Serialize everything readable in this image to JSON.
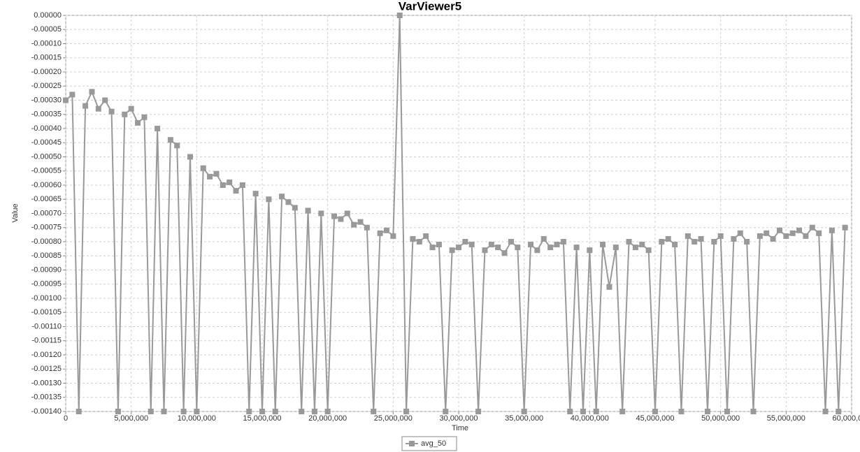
{
  "chart_data": {
    "type": "line",
    "title": "VarViewer5",
    "x_label": "Time",
    "y_label": "Value",
    "grid": true,
    "legend": "bottom",
    "xlim": [
      0,
      60000000
    ],
    "ylim": [
      -0.0014,
      0
    ],
    "xticks": [
      0,
      {
        "value": 5000000,
        "label": "5,000,000"
      },
      {
        "value": 10000000,
        "label": "10,000,000"
      },
      {
        "value": 15000000,
        "label": "15,000,000"
      },
      {
        "value": 20000000,
        "label": "20,000,000"
      },
      {
        "value": 25000000,
        "label": "25,000,000"
      },
      {
        "value": 30000000,
        "label": "30,000,000"
      },
      {
        "value": 35000000,
        "label": "35,000,000"
      },
      {
        "value": 40000000,
        "label": "40,000,000"
      },
      {
        "value": 45000000,
        "label": "45,000,000"
      },
      {
        "value": 50000000,
        "label": "50,000,000"
      },
      {
        "value": 55000000,
        "label": "55,000,000"
      },
      {
        "value": 60000000,
        "label": "60,000,000"
      }
    ],
    "yticks": [
      {
        "value": 0,
        "label": "0.00000"
      },
      {
        "value": -5e-05,
        "label": "-0.00005"
      },
      {
        "value": -0.0001,
        "label": "-0.00010"
      },
      {
        "value": -0.00015,
        "label": "-0.00015"
      },
      {
        "value": -0.0002,
        "label": "-0.00020"
      },
      {
        "value": -0.00025,
        "label": "-0.00025"
      },
      {
        "value": -0.0003,
        "label": "-0.00030"
      },
      {
        "value": -0.00035,
        "label": "-0.00035"
      },
      {
        "value": -0.0004,
        "label": "-0.00040"
      },
      {
        "value": -0.00045,
        "label": "-0.00045"
      },
      {
        "value": -0.0005,
        "label": "-0.00050"
      },
      {
        "value": -0.00055,
        "label": "-0.00055"
      },
      {
        "value": -0.0006,
        "label": "-0.00060"
      },
      {
        "value": -0.00065,
        "label": "-0.00065"
      },
      {
        "value": -0.0007,
        "label": "-0.00070"
      },
      {
        "value": -0.00075,
        "label": "-0.00075"
      },
      {
        "value": -0.0008,
        "label": "-0.00080"
      },
      {
        "value": -0.00085,
        "label": "-0.00085"
      },
      {
        "value": -0.0009,
        "label": "-0.00090"
      },
      {
        "value": -0.00095,
        "label": "-0.00095"
      },
      {
        "value": -0.001,
        "label": "-0.00100"
      },
      {
        "value": -0.00105,
        "label": "-0.00105"
      },
      {
        "value": -0.0011,
        "label": "-0.00110"
      },
      {
        "value": -0.00115,
        "label": "-0.00115"
      },
      {
        "value": -0.0012,
        "label": "-0.00120"
      },
      {
        "value": -0.00125,
        "label": "-0.00125"
      },
      {
        "value": -0.0013,
        "label": "-0.00130"
      },
      {
        "value": -0.00135,
        "label": "-0.00135"
      },
      {
        "value": -0.0014,
        "label": "-0.00140"
      }
    ],
    "x": [
      0,
      500000,
      1000000,
      1500000,
      2000000,
      2500000,
      3000000,
      3500000,
      4000000,
      4500000,
      5000000,
      5500000,
      6000000,
      6500000,
      7000000,
      7500000,
      8000000,
      8500000,
      9000000,
      9500000,
      10000000,
      10500000,
      11000000,
      11500000,
      12000000,
      12500000,
      13000000,
      13500000,
      14000000,
      14500000,
      15000000,
      15500000,
      16000000,
      16500000,
      17000000,
      17500000,
      18000000,
      18500000,
      19000000,
      19500000,
      20000000,
      20500000,
      21000000,
      21500000,
      22000000,
      22500000,
      23000000,
      23500000,
      24000000,
      24500000,
      25000000,
      25500000,
      26000000,
      26500000,
      27000000,
      27500000,
      28000000,
      28500000,
      29000000,
      29500000,
      30000000,
      30500000,
      31000000,
      31500000,
      32000000,
      32500000,
      33000000,
      33500000,
      34000000,
      34500000,
      35000000,
      35500000,
      36000000,
      36500000,
      37000000,
      37500000,
      38000000,
      38500000,
      39000000,
      39500000,
      40000000,
      40500000,
      41000000,
      41500000,
      42000000,
      42500000,
      43000000,
      43500000,
      44000000,
      44500000,
      45000000,
      45500000,
      46000000,
      46500000,
      47000000,
      47500000,
      48000000,
      48500000,
      49000000,
      49500000,
      50000000,
      50500000,
      51000000,
      51500000,
      52000000,
      52500000,
      53000000,
      53500000,
      54000000,
      54500000,
      55000000,
      55500000,
      56000000,
      56500000,
      57000000,
      57500000,
      58000000,
      58500000,
      59000000,
      59500000
    ],
    "series": [
      {
        "name": "avg_50",
        "color": "#999999",
        "values": [
          -0.0003,
          -0.00028,
          -0.0014,
          -0.00032,
          -0.00027,
          -0.00033,
          -0.0003,
          -0.00034,
          -0.0014,
          -0.00035,
          -0.00033,
          -0.00038,
          -0.00036,
          -0.0014,
          -0.0004,
          -0.0014,
          -0.00044,
          -0.00046,
          -0.0014,
          -0.0005,
          -0.0014,
          -0.00054,
          -0.00057,
          -0.00056,
          -0.0006,
          -0.00059,
          -0.00062,
          -0.0006,
          -0.0014,
          -0.00063,
          -0.0014,
          -0.00065,
          -0.0014,
          -0.00064,
          -0.00066,
          -0.00068,
          -0.0014,
          -0.00069,
          -0.0014,
          -0.0007,
          -0.0014,
          -0.00071,
          -0.00072,
          -0.0007,
          -0.00074,
          -0.00073,
          -0.00075,
          -0.0014,
          -0.00077,
          -0.00076,
          -0.00078,
          0,
          -0.0014,
          -0.00079,
          -0.0008,
          -0.00078,
          -0.00082,
          -0.00081,
          -0.0014,
          -0.00083,
          -0.00082,
          -0.0008,
          -0.00081,
          -0.0014,
          -0.00083,
          -0.00081,
          -0.00082,
          -0.00084,
          -0.0008,
          -0.00082,
          -0.0014,
          -0.00081,
          -0.00083,
          -0.00079,
          -0.00082,
          -0.00081,
          -0.0008,
          -0.0014,
          -0.00082,
          -0.0014,
          -0.00083,
          -0.0014,
          -0.00081,
          -0.00096,
          -0.00082,
          -0.0014,
          -0.0008,
          -0.00082,
          -0.00081,
          -0.00083,
          -0.0014,
          -0.0008,
          -0.00079,
          -0.00081,
          -0.0014,
          -0.00078,
          -0.0008,
          -0.00079,
          -0.0014,
          -0.0008,
          -0.00078,
          -0.0014,
          -0.00079,
          -0.00077,
          -0.0008,
          -0.0014,
          -0.00078,
          -0.00077,
          -0.00079,
          -0.00076,
          -0.00078,
          -0.00077,
          -0.00076,
          -0.00078,
          -0.00075,
          -0.00077,
          -0.0014,
          -0.00076,
          -0.0014,
          -0.00075
        ]
      }
    ]
  }
}
